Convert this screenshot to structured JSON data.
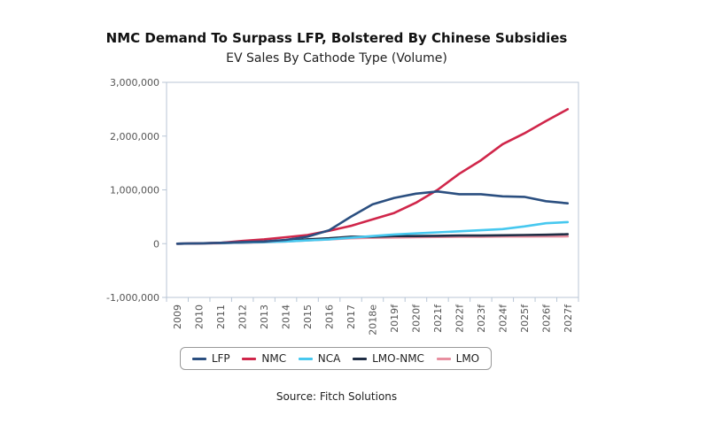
{
  "chart_data": {
    "type": "line",
    "title": "NMC Demand To Surpass LFP, Bolstered By Chinese Subsidies",
    "subtitle": "EV Sales By Cathode Type (Volume)",
    "xlabel": "",
    "ylabel": "",
    "ylim": [
      -1000000,
      3000000
    ],
    "yticks": [
      "3,000,000",
      "2,000,000",
      "1,000,000",
      "0",
      "-1,000,000"
    ],
    "ytick_values": [
      3000000,
      2000000,
      1000000,
      0,
      -1000000
    ],
    "categories": [
      "2009",
      "2010",
      "2011",
      "2012",
      "2013",
      "2014",
      "2015",
      "2016",
      "2017",
      "2018e",
      "2019f",
      "2020f",
      "2021f",
      "2022f",
      "2023f",
      "2024f",
      "2025f",
      "2026f",
      "2027f"
    ],
    "series": [
      {
        "name": "LFP",
        "color": "#2b4f80",
        "values": [
          0,
          5000,
          15000,
          30000,
          40000,
          70000,
          130000,
          250000,
          500000,
          730000,
          850000,
          930000,
          970000,
          920000,
          920000,
          880000,
          870000,
          790000,
          750000
        ]
      },
      {
        "name": "NMC",
        "color": "#d0264a",
        "values": [
          0,
          5000,
          15000,
          50000,
          80000,
          120000,
          160000,
          240000,
          330000,
          450000,
          570000,
          760000,
          1000000,
          1300000,
          1550000,
          1850000,
          2050000,
          2280000,
          2500000
        ]
      },
      {
        "name": "NCA",
        "color": "#47c8ef",
        "values": [
          0,
          5000,
          10000,
          20000,
          30000,
          40000,
          60000,
          80000,
          110000,
          140000,
          170000,
          190000,
          210000,
          230000,
          250000,
          270000,
          320000,
          380000,
          400000
        ]
      },
      {
        "name": "LMO-NMC",
        "color": "#1f2d44",
        "values": [
          0,
          5000,
          10000,
          20000,
          30000,
          50000,
          80000,
          100000,
          130000,
          130000,
          140000,
          140000,
          145000,
          150000,
          150000,
          155000,
          160000,
          165000,
          175000
        ]
      },
      {
        "name": "LMO",
        "color": "#e88fa0",
        "values": [
          0,
          3000,
          8000,
          15000,
          25000,
          40000,
          60000,
          80000,
          100000,
          110000,
          115000,
          120000,
          125000,
          128000,
          130000,
          132000,
          133000,
          134000,
          135000
        ]
      }
    ],
    "grid": false,
    "legend_position": "bottom"
  },
  "source": "Source: Fitch Solutions"
}
